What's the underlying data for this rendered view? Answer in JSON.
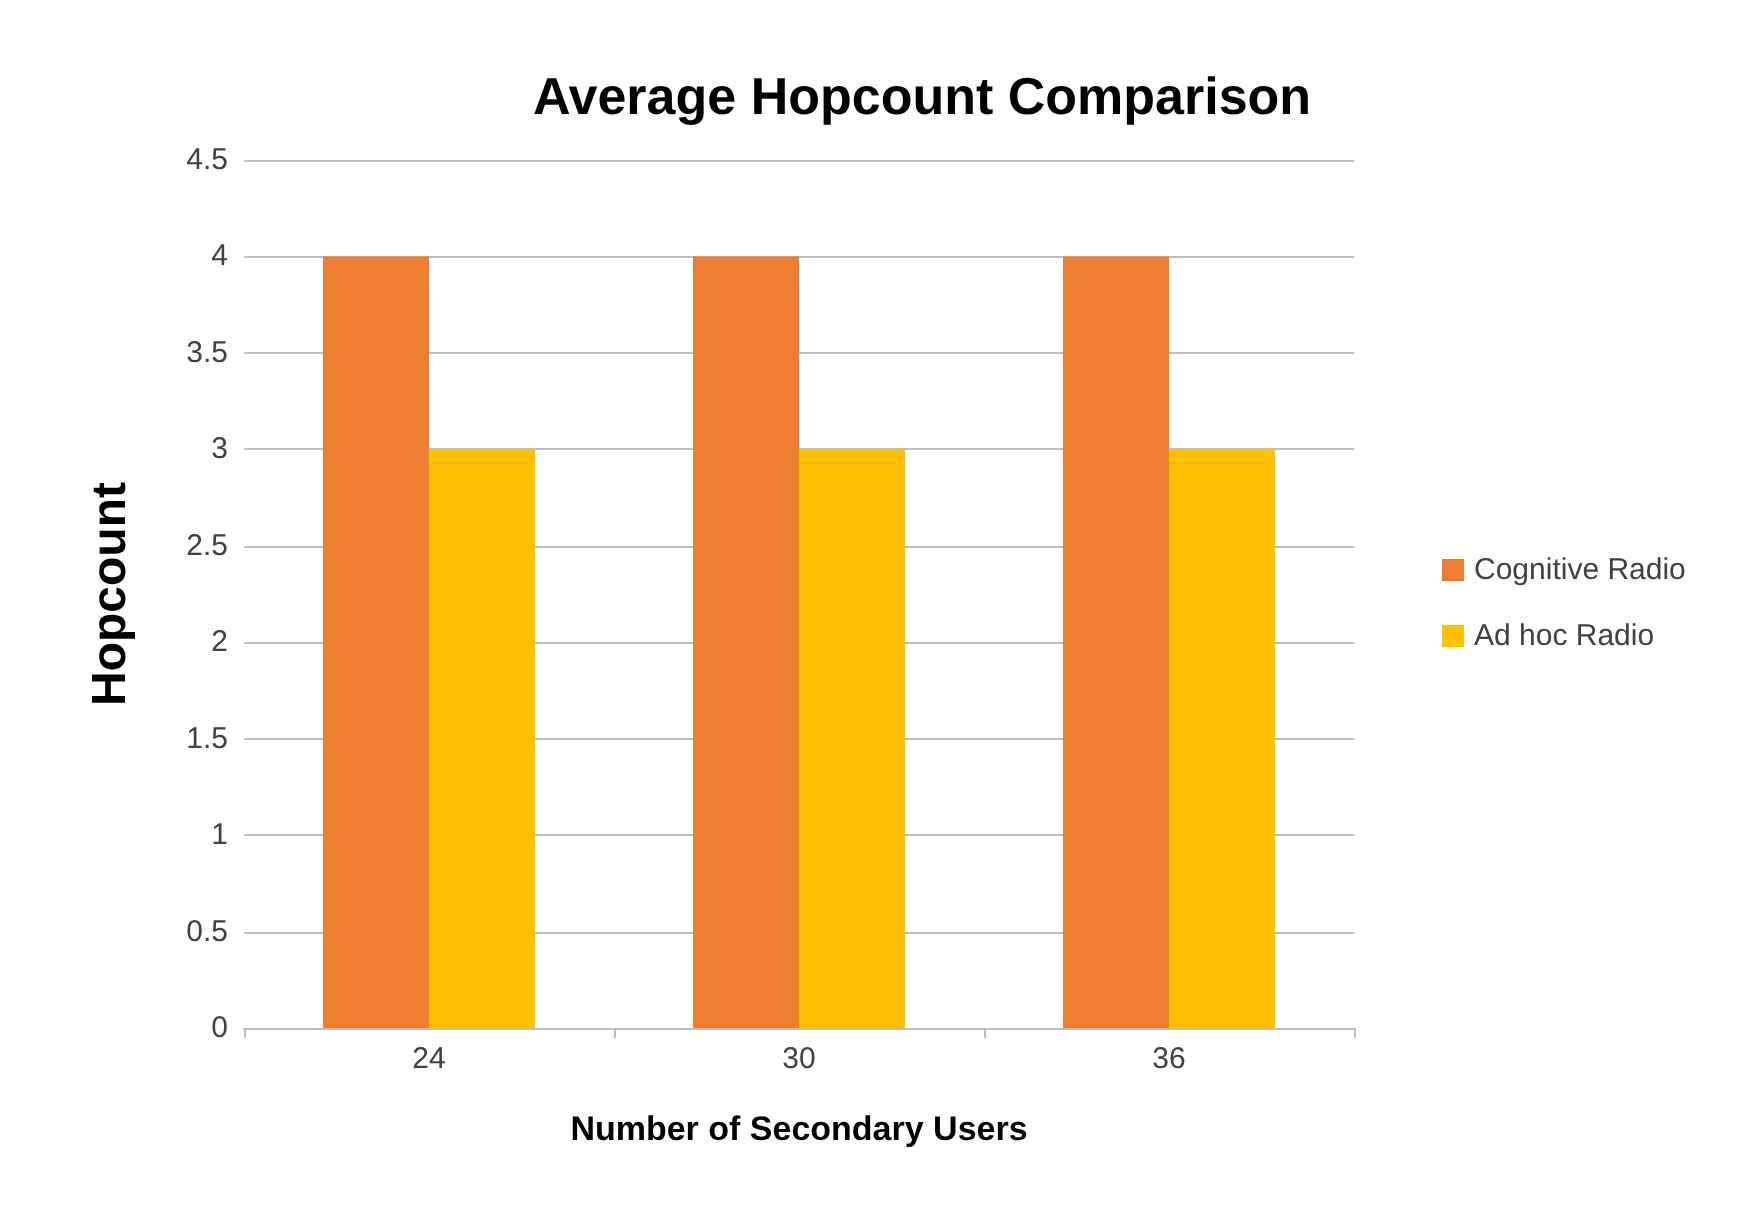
{
  "chart_data": {
    "type": "bar",
    "title": "Average Hopcount Comparison",
    "xlabel": "Number of Secondary Users",
    "ylabel": "Hopcount",
    "categories": [
      "24",
      "30",
      "36"
    ],
    "series": [
      {
        "name": "Cognitive Radio",
        "color": "#ed7d31",
        "values": [
          4,
          4,
          4
        ]
      },
      {
        "name": "Ad hoc Radio",
        "color": "#ffc000",
        "values": [
          3,
          3,
          3
        ]
      }
    ],
    "ylim": [
      0,
      4.5
    ],
    "yticks": [
      0,
      0.5,
      1,
      1.5,
      2,
      2.5,
      3,
      3.5,
      4,
      4.5
    ],
    "grid": "y",
    "legend": "right"
  }
}
